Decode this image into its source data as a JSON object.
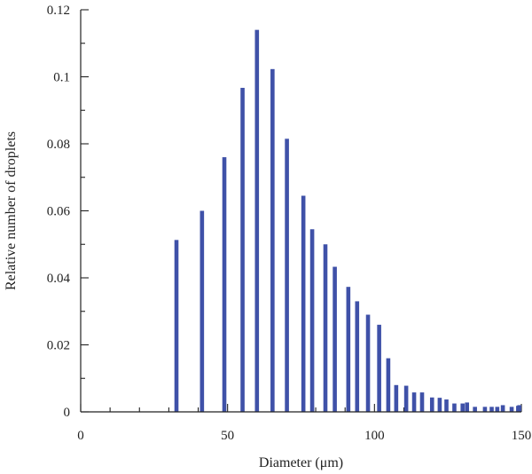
{
  "chart_data": {
    "type": "bar",
    "xlabel": "Diameter (μm)",
    "ylabel": "Relative number of droplets",
    "xlim": [
      0,
      150
    ],
    "ylim": [
      0,
      0.12
    ],
    "x_ticks": [
      0,
      50,
      100,
      150
    ],
    "y_ticks": [
      0,
      0.02,
      0.04,
      0.06,
      0.08,
      0.1,
      0.12
    ],
    "x_tick_labels": [
      "0",
      "50",
      "100",
      "150"
    ],
    "y_tick_labels": [
      "0",
      "0.02",
      "0.04",
      "0.06",
      "0.08",
      "0.1",
      "0.12"
    ],
    "grid": false,
    "bar_color": "#3f51a8",
    "x": [
      32.6,
      41.3,
      48.9,
      55.1,
      60,
      65.3,
      70.2,
      75.8,
      78.8,
      83.3,
      86.5,
      91.1,
      94.1,
      97.8,
      101.6,
      104.7,
      107.4,
      110.8,
      113.5,
      116.2,
      119.6,
      122.2,
      124.5,
      127.2,
      130,
      131.5,
      134.2,
      137.6,
      139.9,
      141.8,
      143.7,
      146.7,
      148.9,
      150
    ],
    "values": [
      0.0513,
      0.06,
      0.076,
      0.0967,
      0.114,
      0.1023,
      0.0815,
      0.0645,
      0.0545,
      0.05,
      0.0433,
      0.0373,
      0.033,
      0.029,
      0.026,
      0.016,
      0.008,
      0.0078,
      0.0058,
      0.0058,
      0.0043,
      0.0042,
      0.0037,
      0.0025,
      0.0025,
      0.0028,
      0.0015,
      0.0015,
      0.0015,
      0.0015,
      0.002,
      0.0015,
      0.0018,
      0.002
    ]
  }
}
